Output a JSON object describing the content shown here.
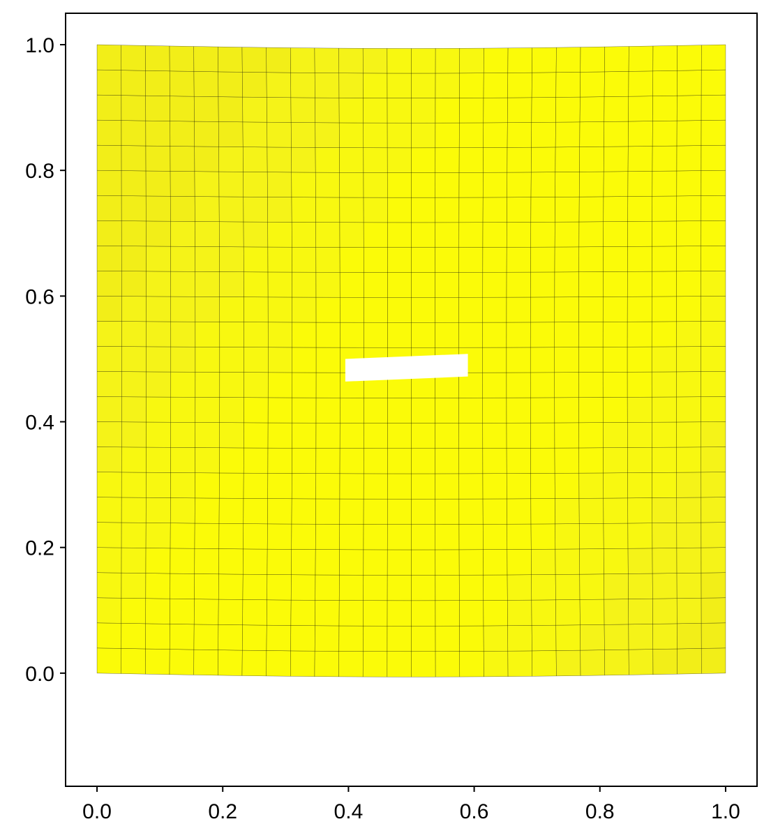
{
  "chart_data": {
    "type": "heatmap",
    "title": "",
    "xlabel": "",
    "ylabel": "",
    "xlim": [
      -0.05,
      1.05
    ],
    "ylim": [
      -0.18,
      1.05
    ],
    "x_ticks": [
      0.0,
      0.2,
      0.4,
      0.6,
      0.8,
      1.0
    ],
    "x_tick_labels": [
      "0.0",
      "0.2",
      "0.4",
      "0.6",
      "0.8",
      "1.0"
    ],
    "y_ticks": [
      0.0,
      0.2,
      0.4,
      0.6,
      0.8,
      1.0
    ],
    "y_tick_labels": [
      "0.0",
      "0.2",
      "0.4",
      "0.6",
      "0.8",
      "1.0"
    ],
    "grid": false,
    "legend": "none",
    "colorbar": "none",
    "mesh": {
      "nx": 26,
      "ny": 25,
      "x_range": [
        0.0,
        1.0
      ],
      "y_range": [
        0.0,
        1.0
      ],
      "bottom_edge_sag": 0.006,
      "top_edge_sag": 0.006,
      "cell_colors": [
        "#f2ee18",
        "#f5f318",
        "#f8f810",
        "#fbfb08"
      ],
      "edge_color": "#000000"
    },
    "crack": {
      "x_start": 0.395,
      "x_end": 0.59,
      "y_left_bottom": 0.464,
      "y_left_top": 0.5,
      "y_right_bottom": 0.472,
      "y_right_top": 0.508,
      "fill": "#ffffff"
    }
  }
}
